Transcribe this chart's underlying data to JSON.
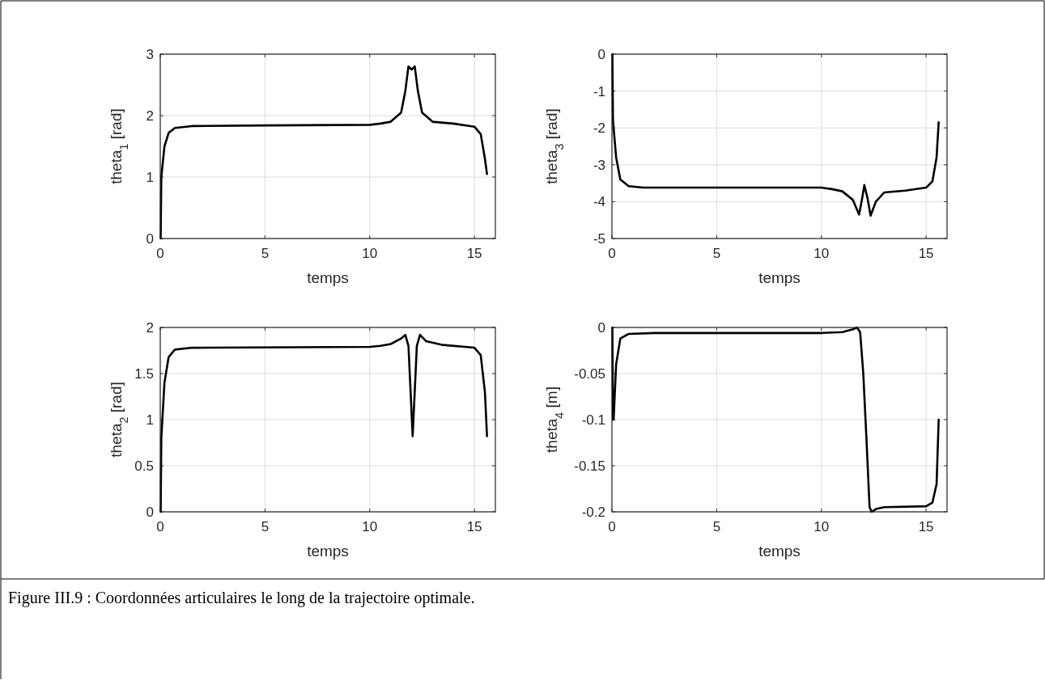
{
  "chart_data": [
    {
      "type": "line",
      "ylabel": "theta$_{1}$ [rad]",
      "xlabel": "temps",
      "xlim": [
        0,
        16
      ],
      "xticks": [
        0,
        5,
        10,
        15
      ],
      "ylim": [
        0,
        3
      ],
      "yticks": [
        0,
        1,
        2,
        3
      ],
      "grid": true,
      "line_style": "solid",
      "series": [
        {
          "color": "#000000",
          "x": [
            0.02,
            0.05,
            0.2,
            0.4,
            0.7,
            1.5,
            5,
            10,
            10.5,
            11,
            11.5,
            11.7,
            11.85,
            12.0,
            12.15,
            12.3,
            12.5,
            13,
            14,
            15,
            15.3,
            15.5,
            15.6
          ],
          "values": [
            0,
            1.0,
            1.5,
            1.72,
            1.8,
            1.83,
            1.84,
            1.85,
            1.87,
            1.9,
            2.05,
            2.4,
            2.8,
            2.75,
            2.8,
            2.4,
            2.05,
            1.9,
            1.87,
            1.82,
            1.7,
            1.3,
            1.05
          ]
        }
      ]
    },
    {
      "type": "line",
      "ylabel": "theta$_{3}$ [rad]",
      "xlabel": "temps",
      "xlim": [
        0,
        16
      ],
      "xticks": [
        0,
        5,
        10,
        15
      ],
      "ylim": [
        -5,
        0
      ],
      "yticks": [
        -5,
        -4,
        -3,
        -2,
        -1,
        0
      ],
      "grid": true,
      "line_style": "solid",
      "series": [
        {
          "color": "#000000",
          "x": [
            0.02,
            0.05,
            0.2,
            0.4,
            0.8,
            1.5,
            10,
            10.5,
            11,
            11.5,
            11.8,
            11.95,
            12.05,
            12.2,
            12.35,
            12.6,
            13,
            14,
            15,
            15.3,
            15.5,
            15.6
          ],
          "values": [
            0,
            -1.8,
            -2.8,
            -3.4,
            -3.58,
            -3.62,
            -3.62,
            -3.66,
            -3.72,
            -3.95,
            -4.35,
            -3.9,
            -3.55,
            -3.9,
            -4.38,
            -4.0,
            -3.75,
            -3.7,
            -3.62,
            -3.45,
            -2.8,
            -1.85
          ]
        }
      ]
    },
    {
      "type": "line",
      "ylabel": "theta$_{2}$ [rad]",
      "xlabel": "temps",
      "xlim": [
        0,
        16
      ],
      "xticks": [
        0,
        5,
        10,
        15
      ],
      "ylim": [
        0,
        2
      ],
      "yticks": [
        0,
        0.5,
        1,
        1.5,
        2
      ],
      "grid": true,
      "line_style": "solid",
      "series": [
        {
          "color": "#000000",
          "x": [
            0.02,
            0.05,
            0.2,
            0.4,
            0.7,
            1.5,
            10,
            10.5,
            11,
            11.5,
            11.7,
            11.85,
            12.05,
            12.25,
            12.4,
            12.7,
            13.5,
            15,
            15.3,
            15.5,
            15.6
          ],
          "values": [
            0,
            0.8,
            1.4,
            1.68,
            1.76,
            1.78,
            1.79,
            1.8,
            1.82,
            1.88,
            1.92,
            1.8,
            0.82,
            1.8,
            1.92,
            1.85,
            1.81,
            1.78,
            1.7,
            1.3,
            0.82
          ]
        }
      ]
    },
    {
      "type": "line",
      "ylabel": "theta$_{4}$ [m]",
      "xlabel": "temps",
      "xlim": [
        0,
        16
      ],
      "xticks": [
        0,
        5,
        10,
        15
      ],
      "ylim": [
        -0.2,
        0
      ],
      "yticks": [
        -0.2,
        -0.15,
        -0.1,
        -0.05,
        0
      ],
      "grid": true,
      "line_style": "solid",
      "annotations": [
        "Figure III.9 : Coordonnées articulaires le long de la trajectoire optimale."
      ],
      "series": [
        {
          "color": "#000000",
          "x": [
            0.02,
            0.05,
            0.08,
            0.2,
            0.4,
            0.8,
            2,
            10,
            11,
            11.5,
            11.7,
            11.85,
            12.0,
            12.15,
            12.3,
            12.4,
            12.6,
            13,
            15,
            15.3,
            15.5,
            15.6
          ],
          "values": [
            0,
            -0.1,
            -0.1,
            -0.04,
            -0.012,
            -0.007,
            -0.006,
            -0.006,
            -0.005,
            -0.002,
            0,
            -0.005,
            -0.05,
            -0.12,
            -0.195,
            -0.2,
            -0.197,
            -0.195,
            -0.194,
            -0.19,
            -0.17,
            -0.1
          ]
        }
      ]
    }
  ]
}
